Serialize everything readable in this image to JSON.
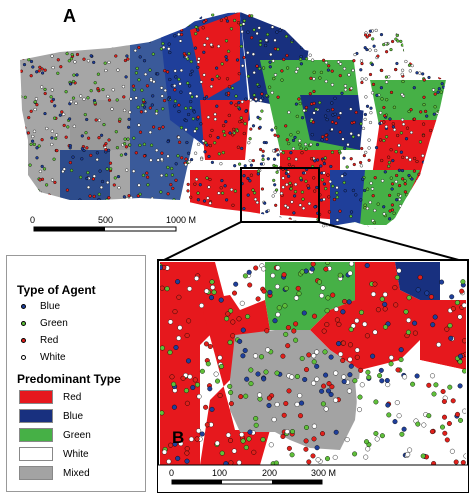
{
  "panels": {
    "a_label": "A",
    "b_label": "B"
  },
  "scalebar_a": {
    "ticks": [
      "0",
      "500",
      "1000 M"
    ]
  },
  "scalebar_b": {
    "ticks": [
      "0",
      "100",
      "200",
      "300 M"
    ]
  },
  "legend": {
    "agent_title": "Type of Agent",
    "agents": [
      {
        "label": "Blue",
        "fill": "#1f3f9a"
      },
      {
        "label": "Green",
        "fill": "#5fbf3a"
      },
      {
        "label": "Red",
        "fill": "#e0201b"
      },
      {
        "label": "White",
        "fill": "#ffffff"
      }
    ],
    "type_title": "Predominant Type",
    "types": [
      {
        "label": "Red",
        "color": "#e6181d"
      },
      {
        "label": "Blue",
        "color": "#18307f"
      },
      {
        "label": "Green",
        "color": "#46b046"
      },
      {
        "label": "White",
        "color": "#ffffff"
      },
      {
        "label": "Mixed",
        "color": "#a3a3a3"
      }
    ]
  }
}
